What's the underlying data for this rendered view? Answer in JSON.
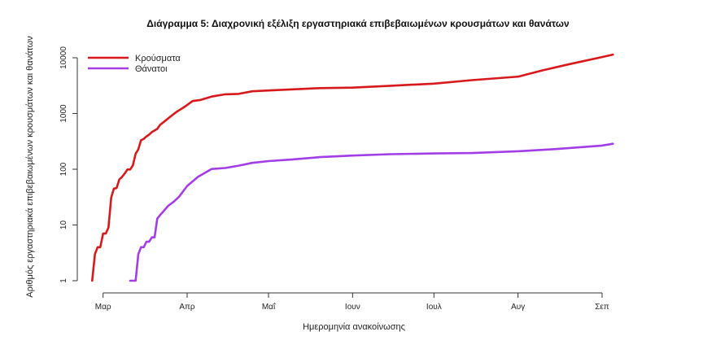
{
  "chart_data": {
    "type": "line",
    "title": "Διάγραμμα 5: Διαχρονική εξέλιξη εργαστηριακά επιβεβαιωμένων κρουσμάτων και θανάτων",
    "xlabel": "Ημερομηνία ανακοίνωσης",
    "ylabel": "Αριθμός εργαστηριακά επιβεβαιωμένων κρουσμάτων και θανάτων",
    "y_scale": "log",
    "ylim": [
      1,
      10000
    ],
    "y_ticks": [
      1,
      10,
      100,
      1000,
      10000
    ],
    "y_tick_labels": [
      "1",
      "10",
      "100",
      "1000",
      "10000"
    ],
    "x_tick_labels": [
      "Μαρ",
      "Απρ",
      "Μαΐ",
      "Ιουν",
      "Ιουλ",
      "Αυγ",
      "Σεπ"
    ],
    "x_ticks": [
      "2020-03-01",
      "2020-04-01",
      "2020-05-01",
      "2020-06-01",
      "2020-07-01",
      "2020-08-01",
      "2020-09-01"
    ],
    "xlim": [
      "2020-02-25",
      "2020-09-10"
    ],
    "legend_position": "top-left",
    "colors": {
      "cases": "#d7191c",
      "deaths": "#a23ee5",
      "axis": "#333333"
    },
    "series": [
      {
        "name": "Κρούσματα",
        "color": "#d7191c",
        "x": [
          "2020-02-26",
          "2020-02-27",
          "2020-02-28",
          "2020-02-29",
          "2020-03-01",
          "2020-03-02",
          "2020-03-03",
          "2020-03-04",
          "2020-03-05",
          "2020-03-06",
          "2020-03-07",
          "2020-03-08",
          "2020-03-09",
          "2020-03-10",
          "2020-03-11",
          "2020-03-12",
          "2020-03-13",
          "2020-03-14",
          "2020-03-15",
          "2020-03-16",
          "2020-03-17",
          "2020-03-18",
          "2020-03-19",
          "2020-03-20",
          "2020-03-21",
          "2020-03-22",
          "2020-03-24",
          "2020-03-26",
          "2020-03-28",
          "2020-03-31",
          "2020-04-03",
          "2020-04-06",
          "2020-04-10",
          "2020-04-15",
          "2020-04-20",
          "2020-04-25",
          "2020-05-01",
          "2020-05-10",
          "2020-05-20",
          "2020-06-01",
          "2020-06-15",
          "2020-07-01",
          "2020-07-15",
          "2020-08-01",
          "2020-08-10",
          "2020-08-20",
          "2020-09-01",
          "2020-09-05"
        ],
        "values": [
          1,
          3,
          4,
          4,
          7,
          7,
          9,
          31,
          45,
          46,
          66,
          73,
          84,
          99,
          99,
          117,
          190,
          228,
          331,
          352,
          387,
          418,
          464,
          495,
          530,
          624,
          743,
          892,
          1061,
          1314,
          1673,
          1755,
          2011,
          2207,
          2245,
          2506,
          2591,
          2716,
          2850,
          2917,
          3148,
          3432,
          3964,
          4587,
          5942,
          7684,
          10317,
          11386
        ]
      },
      {
        "name": "Θάνατοι",
        "color": "#a23ee5",
        "x": [
          "2020-03-11",
          "2020-03-12",
          "2020-03-13",
          "2020-03-14",
          "2020-03-15",
          "2020-03-16",
          "2020-03-17",
          "2020-03-18",
          "2020-03-19",
          "2020-03-20",
          "2020-03-21",
          "2020-03-22",
          "2020-03-23",
          "2020-03-25",
          "2020-03-27",
          "2020-03-29",
          "2020-04-01",
          "2020-04-05",
          "2020-04-10",
          "2020-04-15",
          "2020-04-20",
          "2020-04-25",
          "2020-05-01",
          "2020-05-10",
          "2020-05-20",
          "2020-06-01",
          "2020-06-15",
          "2020-07-01",
          "2020-07-15",
          "2020-08-01",
          "2020-08-15",
          "2020-09-01",
          "2020-09-05"
        ],
        "values": [
          1,
          1,
          1,
          3,
          4,
          4,
          5,
          5,
          6,
          6,
          13,
          15,
          17,
          22,
          26,
          32,
          50,
          73,
          101,
          105,
          116,
          130,
          140,
          150,
          165,
          176,
          186,
          192,
          195,
          210,
          230,
          266,
          286
        ]
      }
    ]
  }
}
